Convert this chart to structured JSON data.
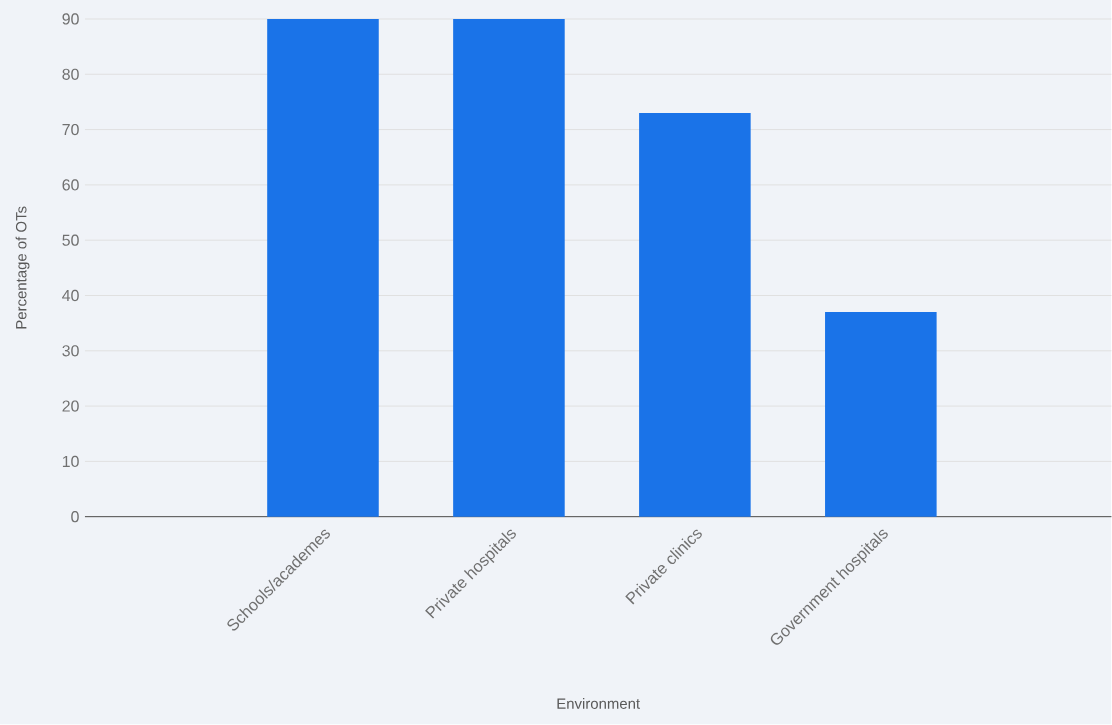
{
  "chart_data": {
    "type": "bar",
    "xlabel": "Environment",
    "ylabel": "Percentage of OTs",
    "categories": [
      "Schools/academes",
      "Private hospitals",
      "Private clinics",
      "Government hospitals"
    ],
    "values": [
      90,
      90,
      73,
      37
    ],
    "color": "#1a73e8",
    "ylim": [
      0,
      90
    ],
    "yticks": [
      0,
      10,
      20,
      30,
      40,
      50,
      60,
      70,
      80,
      90
    ],
    "grid": "y"
  }
}
